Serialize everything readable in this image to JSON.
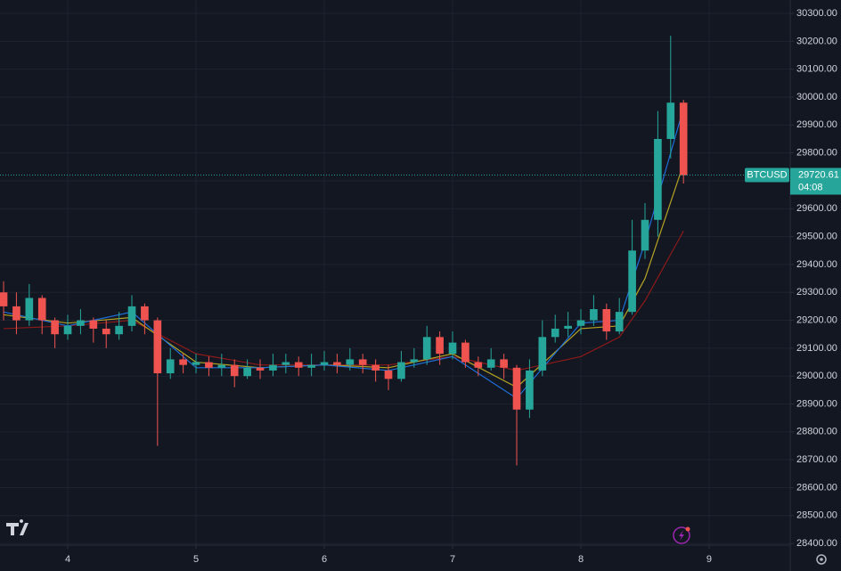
{
  "chart_data": {
    "type": "candlestick",
    "x": [
      3.5,
      3.6,
      3.7,
      3.8,
      3.9,
      4.0,
      4.1,
      4.2,
      4.3,
      4.4,
      4.5,
      4.6,
      4.7,
      4.8,
      4.9,
      5.0,
      5.1,
      5.2,
      5.3,
      5.4,
      5.5,
      5.6,
      5.7,
      5.8,
      5.9,
      6.0,
      6.1,
      6.2,
      6.3,
      6.4,
      6.5,
      6.6,
      6.7,
      6.8,
      6.9,
      7.0,
      7.1,
      7.2,
      7.3,
      7.4,
      7.5,
      7.6,
      7.7,
      7.8,
      7.9,
      8.0,
      8.1,
      8.2,
      8.3,
      8.4,
      8.5,
      8.6,
      8.7,
      8.8
    ],
    "open": [
      29300,
      29250,
      29200,
      29280,
      29200,
      29150,
      29180,
      29200,
      29170,
      29150,
      29180,
      29250,
      29200,
      29010,
      29060,
      29040,
      29050,
      29030,
      29040,
      29000,
      29030,
      29020,
      29040,
      29050,
      29030,
      29040,
      29050,
      29040,
      29060,
      29040,
      29020,
      28990,
      29050,
      29060,
      29140,
      29080,
      29120,
      29050,
      29030,
      29060,
      29030,
      28880,
      29020,
      29140,
      29170,
      29180,
      29200,
      29240,
      29160,
      29230,
      29450,
      29560,
      29850,
      29980
    ],
    "high": [
      29340,
      29300,
      29330,
      29290,
      29210,
      29220,
      29240,
      29210,
      29200,
      29230,
      29290,
      29260,
      29210,
      29100,
      29080,
      29080,
      29070,
      29080,
      29060,
      29060,
      29060,
      29080,
      29080,
      29070,
      29080,
      29090,
      29080,
      29100,
      29080,
      29060,
      29040,
      29090,
      29100,
      29180,
      29160,
      29160,
      29130,
      29070,
      29100,
      29080,
      29040,
      29060,
      29200,
      29220,
      29230,
      29240,
      29290,
      29260,
      29280,
      29560,
      29620,
      29950,
      30220,
      29990
    ],
    "low": [
      29200,
      29150,
      29180,
      29150,
      29100,
      29130,
      29150,
      29120,
      29100,
      29130,
      29160,
      29150,
      28750,
      28990,
      29010,
      29010,
      29000,
      29000,
      28960,
      28990,
      28990,
      29000,
      29010,
      29000,
      29000,
      29020,
      29010,
      29020,
      29010,
      28980,
      28950,
      28980,
      29030,
      29040,
      29040,
      29060,
      29030,
      29000,
      29020,
      28990,
      28680,
      28850,
      29000,
      29120,
      29140,
      29150,
      29180,
      29130,
      29150,
      29220,
      29420,
      29500,
      29780,
      29690
    ],
    "close": [
      29250,
      29200,
      29280,
      29200,
      29150,
      29180,
      29200,
      29170,
      29150,
      29180,
      29250,
      29200,
      29010,
      29060,
      29040,
      29050,
      29030,
      29040,
      29000,
      29030,
      29020,
      29040,
      29050,
      29030,
      29040,
      29050,
      29040,
      29060,
      29040,
      29020,
      28990,
      29050,
      29060,
      29140,
      29080,
      29120,
      29050,
      29030,
      29060,
      29030,
      28880,
      29020,
      29140,
      29170,
      29180,
      29200,
      29240,
      29160,
      29230,
      29450,
      29560,
      29850,
      29980,
      29720
    ],
    "up_color": "#26a69a",
    "down_color": "#ef5350",
    "ma_x": [
      3.5,
      4,
      4.5,
      5,
      5.5,
      6,
      6.5,
      7,
      7.5,
      8,
      8.3,
      8.5,
      8.8
    ],
    "lines": [
      {
        "color": "#8b1a1a",
        "values": [
          29170,
          29180,
          29200,
          29080,
          29040,
          29040,
          29040,
          29070,
          29020,
          29070,
          29140,
          29270,
          29520
        ]
      },
      {
        "color": "#b5a324",
        "values": [
          29220,
          29190,
          29210,
          29050,
          29030,
          29040,
          29030,
          29080,
          28960,
          29170,
          29180,
          29350,
          29760
        ]
      },
      {
        "color": "#1e6fd9",
        "values": [
          29230,
          29180,
          29230,
          29030,
          29030,
          29040,
          29020,
          29070,
          28920,
          29190,
          29200,
          29480,
          29960
        ]
      }
    ],
    "xlim": [
      3.472,
      9.632
    ],
    "xticks": [
      4,
      5,
      6,
      7,
      8,
      9
    ],
    "ylim": [
      28394,
      30348
    ],
    "yticks": [
      {
        "value": 28400,
        "label": "28400.00"
      },
      {
        "value": 28500,
        "label": "28500.00"
      },
      {
        "value": 28600,
        "label": "28600.00"
      },
      {
        "value": 28700,
        "label": "28700.00"
      },
      {
        "value": 28800,
        "label": "28800.00"
      },
      {
        "value": 28900,
        "label": "28900.00"
      },
      {
        "value": 29000,
        "label": "29000.00"
      },
      {
        "value": 29100,
        "label": "29100.00"
      },
      {
        "value": 29200,
        "label": "29200.00"
      },
      {
        "value": 29300,
        "label": "29300.00"
      },
      {
        "value": 29400,
        "label": "29400.00"
      },
      {
        "value": 29500,
        "label": "29500.00"
      },
      {
        "value": 29600,
        "label": "29600.00"
      },
      {
        "value": 29700,
        "label": "29700.00"
      },
      {
        "value": 29800,
        "label": "29800.00"
      },
      {
        "value": 29900,
        "label": "29900.00"
      },
      {
        "value": 30000,
        "label": "30000.00"
      },
      {
        "value": 30100,
        "label": "30100.00"
      },
      {
        "value": 30200,
        "label": "30200.00"
      },
      {
        "value": 30300,
        "label": "30300.00"
      }
    ],
    "grid": true,
    "last_price": {
      "symbol": "BTCUSD",
      "price": 29720.61,
      "countdown": "04:08"
    }
  }
}
